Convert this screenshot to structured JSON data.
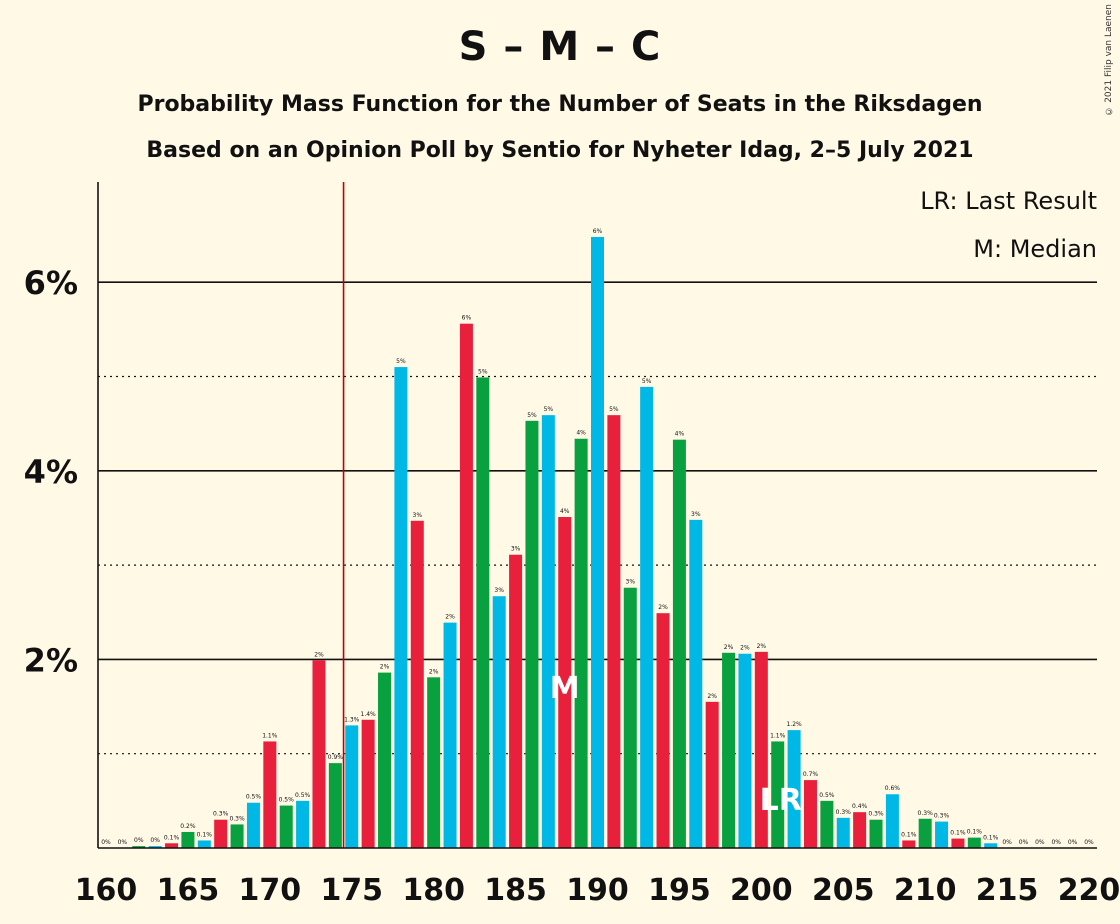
{
  "chart_data": {
    "type": "bar",
    "title": "S – M – C",
    "subtitle": "Probability Mass Function for the Number of Seats in the Riksdagen",
    "subtitle2": "Based on an Opinion Poll by Sentio for Nyheter Idag, 2–5 July 2021",
    "copyright": "© 2021 Filip van Laenen",
    "legend": {
      "lr": "LR: Last Result",
      "m": "M: Median"
    },
    "markers": {
      "median_label": "M",
      "median_seats": 188,
      "last_result_label": "LR",
      "last_result_seats": 201,
      "majority_line_seats": 175
    },
    "xlabel": "",
    "ylabel": "",
    "xlim": [
      160,
      220
    ],
    "ylim": [
      0,
      7
    ],
    "x_ticks": [
      "160",
      "165",
      "170",
      "175",
      "180",
      "185",
      "190",
      "195",
      "200",
      "205",
      "210",
      "215",
      "220"
    ],
    "y_ticks": [
      {
        "value": 2,
        "label": "2%"
      },
      {
        "value": 4,
        "label": "4%"
      },
      {
        "value": 6,
        "label": "6%"
      }
    ],
    "dotted_grid": [
      1,
      3,
      5
    ],
    "colors": [
      "#E8203C",
      "#09A13F",
      "#00B8E6"
    ],
    "color_cycle_order": [
      "#00B8E6",
      "#E8203C",
      "#09A13F"
    ],
    "x": [
      160,
      161,
      162,
      163,
      164,
      165,
      166,
      167,
      168,
      169,
      170,
      171,
      172,
      173,
      174,
      175,
      176,
      177,
      178,
      179,
      180,
      181,
      182,
      183,
      184,
      185,
      186,
      187,
      188,
      189,
      190,
      191,
      192,
      193,
      194,
      195,
      196,
      197,
      198,
      199,
      200,
      201,
      202,
      203,
      204,
      205,
      206,
      207,
      208,
      209,
      210,
      211,
      212,
      213,
      214,
      215,
      216,
      217,
      218,
      219,
      220
    ],
    "values": [
      0.0,
      0.0,
      0.02,
      0.02,
      0.05,
      0.17,
      0.08,
      0.3,
      0.25,
      0.48,
      1.13,
      0.45,
      0.5,
      1.99,
      0.9,
      1.3,
      1.36,
      1.86,
      5.1,
      3.47,
      1.81,
      2.39,
      5.56,
      4.99,
      2.67,
      3.11,
      4.53,
      4.59,
      3.51,
      4.34,
      6.48,
      4.59,
      2.76,
      4.89,
      2.49,
      4.33,
      3.48,
      1.55,
      2.07,
      2.06,
      2.08,
      1.13,
      1.25,
      0.72,
      0.5,
      0.32,
      0.38,
      0.3,
      0.57,
      0.08,
      0.31,
      0.28,
      0.1,
      0.11,
      0.05,
      0.0,
      0.0,
      0.0,
      0.0,
      0.0,
      0.0
    ],
    "labels": [
      "0%",
      "0%",
      "0%",
      "0%",
      "0.1%",
      "0.2%",
      "0.1%",
      "0.3%",
      "0.3%",
      "0.5%",
      "1.1%",
      "0.5%",
      "0.5%",
      "2%",
      "0.9%",
      "1.3%",
      "1.4%",
      "2%",
      "5%",
      "3%",
      "2%",
      "2%",
      "6%",
      "5%",
      "3%",
      "3%",
      "5%",
      "5%",
      "4%",
      "4%",
      "6%",
      "5%",
      "3%",
      "5%",
      "2%",
      "4%",
      "3%",
      "2%",
      "2%",
      "2%",
      "2%",
      "1.1%",
      "1.2%",
      "0.7%",
      "0.5%",
      "0.3%",
      "0.4%",
      "0.3%",
      "0.6%",
      "0.1%",
      "0.3%",
      "0.3%",
      "0.1%",
      "0.1%",
      "0.1%",
      "0%",
      "0%",
      "0%",
      "0%",
      "0%",
      "0%"
    ]
  }
}
